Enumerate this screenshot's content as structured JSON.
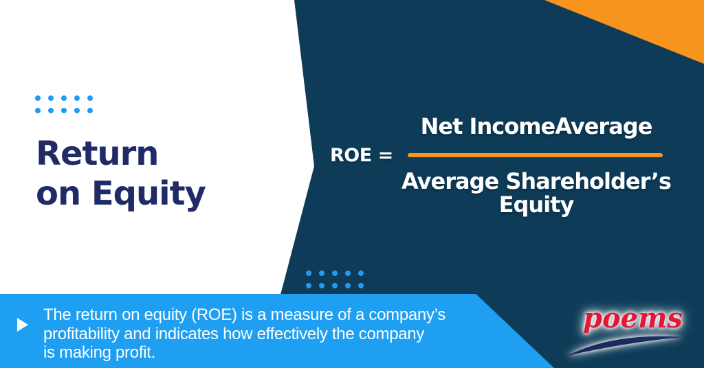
{
  "colors": {
    "navy": "#0E3C58",
    "banner_blue": "#1E9FF2",
    "dot_blue": "#1F9CF0",
    "orange": "#F7941E",
    "title_navy": "#1F2A66",
    "logo_red": "#E31837",
    "swoosh_navy": "#1A2A5E"
  },
  "title": {
    "line1": "Return",
    "line2": "on Equity"
  },
  "formula": {
    "lhs": "ROE =",
    "numerator": "Net IncomeAverage",
    "denominator_line1": "Average Shareholder’s",
    "denominator_line2": "Equity"
  },
  "description": {
    "lines": [
      "The return on equity (ROE) is a measure of a company’s",
      "profitability and indicates how effectively the company",
      "is making profit."
    ]
  },
  "logo": {
    "text": "poems"
  }
}
